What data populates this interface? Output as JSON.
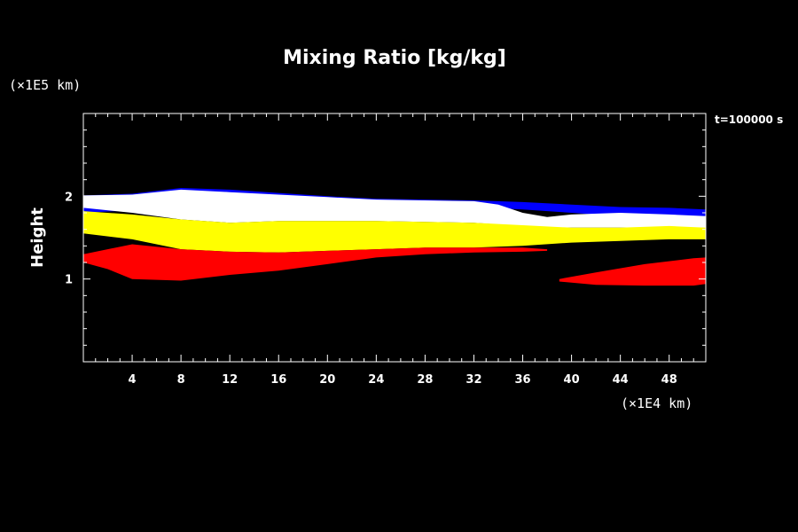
{
  "chart_data": {
    "type": "area",
    "title": "Mixing Ratio [kg/kg]",
    "ylabel": "Height",
    "y_unit": "(×1E5 km)",
    "x_unit": "(×1E4 km)",
    "time_label": "t=100000 s",
    "xlim": [
      0,
      51
    ],
    "ylim": [
      0,
      3
    ],
    "x_ticks": [
      4,
      8,
      12,
      16,
      20,
      24,
      28,
      32,
      36,
      40,
      44,
      48
    ],
    "y_ticks": [
      1,
      2
    ],
    "grid": false,
    "background": "#000000",
    "layers": [
      {
        "color": "#0000ff",
        "upper": [
          [
            0,
            2.01
          ],
          [
            4,
            2.03
          ],
          [
            8,
            2.1
          ],
          [
            12,
            2.08
          ],
          [
            16,
            2.04
          ],
          [
            20,
            2.0
          ],
          [
            24,
            1.97
          ],
          [
            28,
            1.96
          ],
          [
            32,
            1.95
          ],
          [
            36,
            1.93
          ],
          [
            40,
            1.9
          ],
          [
            44,
            1.87
          ],
          [
            48,
            1.86
          ],
          [
            51,
            1.84
          ]
        ],
        "lower": [
          [
            0,
            1.8
          ],
          [
            4,
            1.83
          ],
          [
            8,
            1.85
          ],
          [
            12,
            1.87
          ],
          [
            16,
            1.9
          ],
          [
            20,
            1.9
          ],
          [
            24,
            1.89
          ],
          [
            28,
            1.88
          ],
          [
            32,
            1.87
          ],
          [
            36,
            1.84
          ],
          [
            40,
            1.8
          ],
          [
            44,
            1.76
          ],
          [
            48,
            1.74
          ],
          [
            51,
            1.72
          ]
        ]
      },
      {
        "color": "#ffffff",
        "upper": [
          [
            0,
            2.01
          ],
          [
            4,
            2.02
          ],
          [
            8,
            2.08
          ],
          [
            12,
            2.05
          ],
          [
            16,
            2.02
          ],
          [
            20,
            1.99
          ],
          [
            24,
            1.96
          ],
          [
            28,
            1.95
          ],
          [
            32,
            1.94
          ],
          [
            34,
            1.9
          ],
          [
            36,
            1.8
          ],
          [
            38,
            1.75
          ],
          [
            40,
            1.78
          ],
          [
            44,
            1.8
          ],
          [
            48,
            1.78
          ],
          [
            51,
            1.76
          ]
        ],
        "lower": [
          [
            0,
            1.86
          ],
          [
            4,
            1.8
          ],
          [
            8,
            1.72
          ],
          [
            12,
            1.68
          ],
          [
            16,
            1.7
          ],
          [
            20,
            1.7
          ],
          [
            24,
            1.7
          ],
          [
            28,
            1.69
          ],
          [
            32,
            1.68
          ],
          [
            34,
            1.66
          ],
          [
            36,
            1.64
          ],
          [
            38,
            1.62
          ],
          [
            40,
            1.62
          ],
          [
            44,
            1.62
          ],
          [
            48,
            1.62
          ],
          [
            51,
            1.6
          ]
        ]
      },
      {
        "color": "#ffff00",
        "upper": [
          [
            0,
            1.82
          ],
          [
            4,
            1.78
          ],
          [
            8,
            1.72
          ],
          [
            12,
            1.68
          ],
          [
            16,
            1.7
          ],
          [
            20,
            1.7
          ],
          [
            24,
            1.7
          ],
          [
            28,
            1.69
          ],
          [
            32,
            1.68
          ],
          [
            36,
            1.65
          ],
          [
            40,
            1.62
          ],
          [
            44,
            1.62
          ],
          [
            48,
            1.64
          ],
          [
            51,
            1.62
          ]
        ],
        "lower": [
          [
            0,
            1.55
          ],
          [
            4,
            1.48
          ],
          [
            8,
            1.36
          ],
          [
            12,
            1.33
          ],
          [
            16,
            1.32
          ],
          [
            20,
            1.34
          ],
          [
            24,
            1.36
          ],
          [
            28,
            1.38
          ],
          [
            32,
            1.38
          ],
          [
            36,
            1.4
          ],
          [
            40,
            1.44
          ],
          [
            44,
            1.46
          ],
          [
            48,
            1.48
          ],
          [
            51,
            1.48
          ]
        ]
      },
      {
        "color": "#ff0000",
        "upper": [
          [
            0,
            1.3
          ],
          [
            4,
            1.42
          ],
          [
            8,
            1.36
          ],
          [
            12,
            1.33
          ],
          [
            16,
            1.32
          ],
          [
            20,
            1.34
          ],
          [
            24,
            1.36
          ],
          [
            28,
            1.38
          ],
          [
            32,
            1.38
          ],
          [
            36,
            1.38
          ],
          [
            38,
            1.36
          ]
        ],
        "lower": [
          [
            0,
            1.2
          ],
          [
            2,
            1.12
          ],
          [
            4,
            1.0
          ],
          [
            8,
            0.98
          ],
          [
            12,
            1.05
          ],
          [
            16,
            1.1
          ],
          [
            20,
            1.18
          ],
          [
            24,
            1.26
          ],
          [
            28,
            1.3
          ],
          [
            32,
            1.32
          ],
          [
            36,
            1.33
          ],
          [
            38,
            1.34
          ]
        ]
      },
      {
        "color": "#ff0000",
        "upper": [
          [
            39,
            1.0
          ],
          [
            42,
            1.08
          ],
          [
            46,
            1.18
          ],
          [
            50,
            1.25
          ],
          [
            51,
            1.26
          ]
        ],
        "lower": [
          [
            39,
            0.97
          ],
          [
            42,
            0.93
          ],
          [
            46,
            0.92
          ],
          [
            50,
            0.92
          ],
          [
            51,
            0.94
          ]
        ]
      }
    ]
  }
}
